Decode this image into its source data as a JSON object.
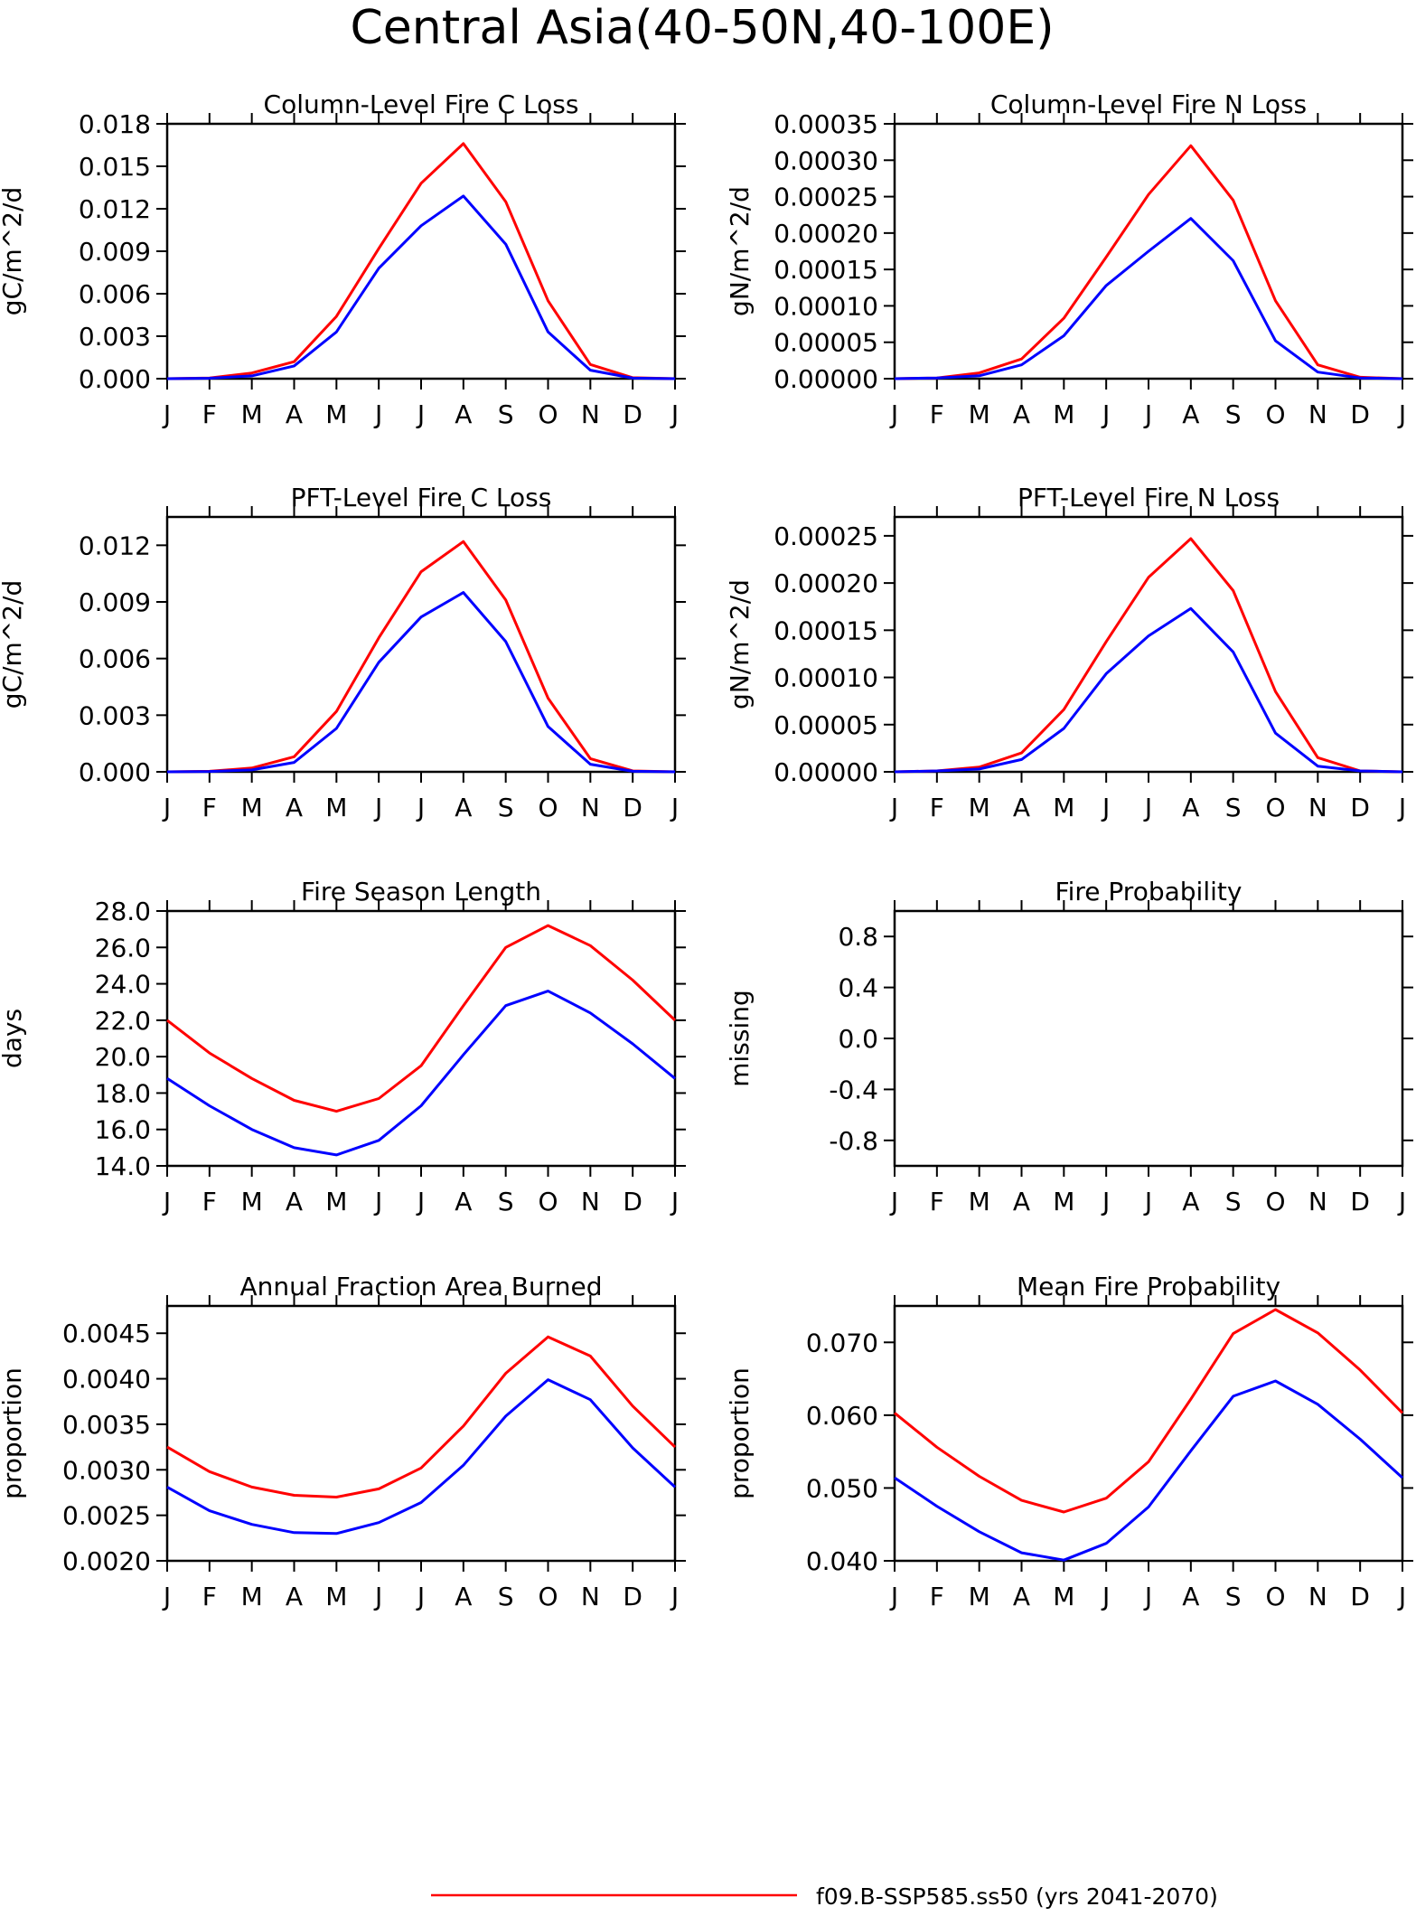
{
  "figure": {
    "title": "Central Asia(40-50N,40-100E)",
    "month_labels": [
      "J",
      "F",
      "M",
      "A",
      "M",
      "J",
      "J",
      "A",
      "S",
      "O",
      "N",
      "D",
      "J"
    ],
    "colors": {
      "red": "#ff0000",
      "blue": "#0000ff"
    },
    "legend": {
      "red_label": "f09.B-SSP585.ss50 (yrs 2041-2070)",
      "blue_label": ""
    }
  },
  "chart_data": [
    {
      "type": "line",
      "title": "Column-Level Fire C Loss",
      "ylabel": "gC/m^2/d",
      "ylim": [
        0,
        0.018
      ],
      "yticks": [
        "0.000",
        "0.003",
        "0.006",
        "0.009",
        "0.012",
        "0.015",
        "0.018"
      ],
      "series": [
        {
          "color": "red",
          "values": [
            0.0,
            5e-05,
            0.0004,
            0.0012,
            0.0044,
            0.0092,
            0.0138,
            0.0166,
            0.0125,
            0.0055,
            0.001,
            7e-05,
            0.0
          ]
        },
        {
          "color": "blue",
          "values": [
            0.0,
            3e-05,
            0.0002,
            0.0009,
            0.0033,
            0.0078,
            0.0108,
            0.0129,
            0.0095,
            0.0033,
            0.0006,
            4e-05,
            0.0
          ]
        }
      ]
    },
    {
      "type": "line",
      "title": "Column-Level Fire N Loss",
      "ylabel": "gN/m^2/d",
      "ylim": [
        0,
        0.00035
      ],
      "yticks": [
        "0.00000",
        "0.00005",
        "0.00010",
        "0.00015",
        "0.00020",
        "0.00025",
        "0.00030",
        "0.00035"
      ],
      "series": [
        {
          "color": "red",
          "values": [
            0.0,
            1e-06,
            8e-06,
            2.7e-05,
            8.3e-05,
            0.000167,
            0.000253,
            0.00032,
            0.000245,
            0.000107,
            1.9e-05,
            2e-06,
            0.0
          ]
        },
        {
          "color": "blue",
          "values": [
            0.0,
            1e-06,
            4e-06,
            1.9e-05,
            5.9e-05,
            0.000128,
            0.000175,
            0.00022,
            0.000162,
            5.2e-05,
            9e-06,
            1e-06,
            0.0
          ]
        }
      ]
    },
    {
      "type": "line",
      "title": "PFT-Level Fire C Loss",
      "ylabel": "gC/m^2/d",
      "ylim": [
        0,
        0.0135
      ],
      "yticks": [
        "0.000",
        "0.003",
        "0.006",
        "0.009",
        "0.012"
      ],
      "series": [
        {
          "color": "red",
          "values": [
            0.0,
            3e-05,
            0.0002,
            0.0008,
            0.0032,
            0.0071,
            0.0106,
            0.0122,
            0.0091,
            0.0039,
            0.0007,
            5e-05,
            0.0
          ]
        },
        {
          "color": "blue",
          "values": [
            0.0,
            2e-05,
            0.0001,
            0.0005,
            0.0023,
            0.0058,
            0.0082,
            0.0095,
            0.0069,
            0.0024,
            0.0004,
            3e-05,
            0.0
          ]
        }
      ]
    },
    {
      "type": "line",
      "title": "PFT-Level Fire N Loss",
      "ylabel": "gN/m^2/d",
      "ylim": [
        0,
        0.00027
      ],
      "yticks": [
        "0.00000",
        "0.00005",
        "0.00010",
        "0.00015",
        "0.00020",
        "0.00025"
      ],
      "series": [
        {
          "color": "red",
          "values": [
            0.0,
            1e-06,
            5e-06,
            2e-05,
            6.6e-05,
            0.000138,
            0.000206,
            0.000247,
            0.000192,
            8.5e-05,
            1.5e-05,
            1e-06,
            0.0
          ]
        },
        {
          "color": "blue",
          "values": [
            0.0,
            1e-06,
            3e-06,
            1.3e-05,
            4.6e-05,
            0.000104,
            0.000144,
            0.000173,
            0.000127,
            4.1e-05,
            6e-06,
            1e-06,
            0.0
          ]
        }
      ]
    },
    {
      "type": "line",
      "title": "Fire Season Length",
      "ylabel": "days",
      "ylim": [
        14,
        28
      ],
      "yticks": [
        "14.0",
        "16.0",
        "18.0",
        "20.0",
        "22.0",
        "24.0",
        "26.0",
        "28.0"
      ],
      "series": [
        {
          "color": "red",
          "values": [
            22.0,
            20.2,
            18.8,
            17.6,
            17.0,
            17.7,
            19.5,
            22.8,
            26.0,
            27.2,
            26.1,
            24.2,
            22.0
          ]
        },
        {
          "color": "blue",
          "values": [
            18.8,
            17.3,
            16.0,
            15.0,
            14.6,
            15.4,
            17.3,
            20.1,
            22.8,
            23.6,
            22.4,
            20.7,
            18.8
          ]
        }
      ]
    },
    {
      "type": "line",
      "title": "Fire Probability",
      "ylabel": "missing",
      "ylim": [
        -1,
        1
      ],
      "yticks": [
        "-0.8",
        "-0.4",
        "0.0",
        "0.4",
        "0.8"
      ],
      "ytick_values": [
        -0.8,
        -0.4,
        0,
        0.4,
        0.8
      ],
      "series": []
    },
    {
      "type": "line",
      "title": "Annual Fraction Area Burned",
      "ylabel": "proportion",
      "ylim": [
        0.002,
        0.0048
      ],
      "yticks": [
        "0.0020",
        "0.0025",
        "0.0030",
        "0.0035",
        "0.0040",
        "0.0045"
      ],
      "series": [
        {
          "color": "red",
          "values": [
            0.00325,
            0.00298,
            0.00281,
            0.00272,
            0.0027,
            0.00279,
            0.00302,
            0.00348,
            0.00406,
            0.00446,
            0.00425,
            0.0037,
            0.00325
          ]
        },
        {
          "color": "blue",
          "values": [
            0.00281,
            0.00255,
            0.0024,
            0.00231,
            0.0023,
            0.00242,
            0.00264,
            0.00305,
            0.00359,
            0.00399,
            0.00377,
            0.00324,
            0.00281
          ]
        }
      ]
    },
    {
      "type": "line",
      "title": "Mean Fire Probability",
      "ylabel": "proportion",
      "ylim": [
        0.04,
        0.075
      ],
      "yticks": [
        "0.040",
        "0.050",
        "0.060",
        "0.070"
      ],
      "series": [
        {
          "color": "red",
          "values": [
            0.0603,
            0.0556,
            0.0516,
            0.0483,
            0.0467,
            0.0486,
            0.0536,
            0.0622,
            0.0712,
            0.0745,
            0.0713,
            0.0662,
            0.0603
          ]
        },
        {
          "color": "blue",
          "values": [
            0.0514,
            0.0475,
            0.044,
            0.0411,
            0.0401,
            0.0424,
            0.0474,
            0.0551,
            0.0626,
            0.0647,
            0.0615,
            0.0567,
            0.0514
          ]
        }
      ]
    }
  ]
}
